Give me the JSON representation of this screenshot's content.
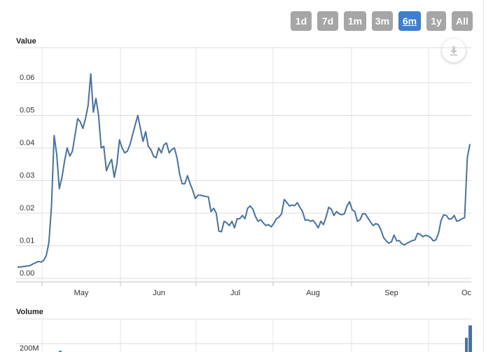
{
  "range_selector": {
    "buttons": [
      {
        "label": "1d",
        "active": false
      },
      {
        "label": "7d",
        "active": false
      },
      {
        "label": "1m",
        "active": false
      },
      {
        "label": "3m",
        "active": false
      },
      {
        "label": "6m",
        "active": true
      },
      {
        "label": "1y",
        "active": false
      },
      {
        "label": "All",
        "active": false
      }
    ]
  },
  "export": {
    "icon": "download-icon"
  },
  "colors": {
    "series": "#4572a7",
    "active_button": "#3e7ed0",
    "button": "#a6a6a6",
    "grid": "#dddddd"
  },
  "chart_data": [
    {
      "type": "line",
      "title": "",
      "ylabel": "Value",
      "xlabel": "",
      "y_ticks": [
        "0.00",
        "0.01",
        "0.02",
        "0.03",
        "0.04",
        "0.05",
        "0.06"
      ],
      "x_ticks": [
        "May",
        "Jun",
        "Jul",
        "Aug",
        "Sep",
        "Oc"
      ],
      "ylim": [
        0,
        0.07
      ],
      "grid": true,
      "series": [
        {
          "values": [
            0.0035,
            0.0035,
            0.0036,
            0.0037,
            0.0038,
            0.004,
            0.0045,
            0.0048,
            0.0052,
            0.005,
            0.0055,
            0.007,
            0.011,
            0.022,
            0.0438,
            0.038,
            0.0275,
            0.031,
            0.036,
            0.04,
            0.0375,
            0.039,
            0.044,
            0.049,
            0.048,
            0.046,
            0.049,
            0.053,
            0.0627,
            0.051,
            0.0552,
            0.05,
            0.04,
            0.0405,
            0.033,
            0.035,
            0.0365,
            0.031,
            0.035,
            0.0425,
            0.04,
            0.0385,
            0.039,
            0.041,
            0.044,
            0.047,
            0.05,
            0.046,
            0.042,
            0.045,
            0.0405,
            0.0395,
            0.0375,
            0.037,
            0.04,
            0.0385,
            0.041,
            0.0415,
            0.0385,
            0.0395,
            0.04,
            0.037,
            0.032,
            0.029,
            0.029,
            0.0315,
            0.029,
            0.027,
            0.0245,
            0.0255,
            0.0255,
            0.0253,
            0.0251,
            0.025,
            0.0205,
            0.0215,
            0.02,
            0.0145,
            0.0143,
            0.0175,
            0.017,
            0.0162,
            0.0175,
            0.0155,
            0.0183,
            0.0183,
            0.0193,
            0.0183,
            0.0215,
            0.0222,
            0.0212,
            0.019,
            0.0175,
            0.018,
            0.017,
            0.0162,
            0.0165,
            0.0158,
            0.0168,
            0.0183,
            0.0188,
            0.0198,
            0.0242,
            0.0233,
            0.0222,
            0.0225,
            0.0223,
            0.0232,
            0.0218,
            0.0205,
            0.0178,
            0.018,
            0.0175,
            0.0178,
            0.0168,
            0.0155,
            0.0175,
            0.0165,
            0.0188,
            0.0218,
            0.0212,
            0.0193,
            0.0205,
            0.0198,
            0.0195,
            0.0198,
            0.0222,
            0.0235,
            0.021,
            0.0205,
            0.0175,
            0.018,
            0.0198,
            0.0198,
            0.0185,
            0.0173,
            0.0162,
            0.0168,
            0.0165,
            0.0148,
            0.0125,
            0.0115,
            0.0108,
            0.0112,
            0.0133,
            0.0115,
            0.0116,
            0.0106,
            0.0103,
            0.0108,
            0.0112,
            0.0116,
            0.0118,
            0.0138,
            0.0135,
            0.0128,
            0.0132,
            0.013,
            0.0125,
            0.0115,
            0.0118,
            0.0138,
            0.0178,
            0.0195,
            0.0193,
            0.0182,
            0.0183,
            0.0193,
            0.0175,
            0.0178,
            0.0183,
            0.0186,
            0.037,
            0.0412
          ]
        }
      ]
    },
    {
      "type": "bar",
      "title": "",
      "ylabel": "Volume",
      "y_ticks": [
        "200M"
      ],
      "values": [
        0.03,
        0.37,
        0.69
      ]
    }
  ]
}
